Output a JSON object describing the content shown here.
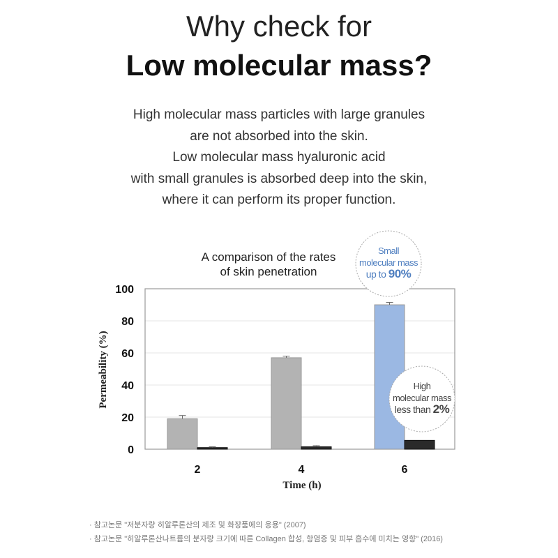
{
  "heading": {
    "line1": "Why check for",
    "line2": "Low molecular mass?"
  },
  "description": [
    "High molecular mass particles with large granules",
    "are not absorbed into the skin.",
    "Low molecular mass hyaluronic acid",
    "with small granules is absorbed deep into the skin,",
    "where it can perform its proper function."
  ],
  "chart_data": {
    "type": "bar",
    "title_lines": [
      "A comparison of the rates",
      "of skin penetration"
    ],
    "xlabel": "Time (h)",
    "ylabel": "Permeability (%)",
    "categories": [
      "2",
      "4",
      "6"
    ],
    "ylim": [
      0,
      100
    ],
    "yticks": [
      "0",
      "20",
      "40",
      "60",
      "80",
      "100"
    ],
    "grid": true,
    "series": [
      {
        "values": [
          19,
          57,
          90
        ],
        "errors": [
          2,
          1,
          1.5
        ],
        "colors": [
          "#b3b3b3",
          "#b3b3b3",
          "#9bb8e3"
        ]
      },
      {
        "values": [
          1,
          1.5,
          5.5
        ],
        "errors": [
          0.5,
          0.7,
          0
        ],
        "colors": [
          "#2a2a2a",
          "#2a2a2a",
          "#2a2a2a"
        ]
      }
    ],
    "annotations": [
      {
        "lines": [
          "Small",
          "molecular mass",
          "up to "
        ],
        "emph": "90%",
        "color": "#4f7fc0"
      },
      {
        "lines": [
          "High",
          "molecular mass",
          "less than "
        ],
        "emph": "2%",
        "color": "#444444"
      }
    ]
  },
  "footnotes": [
    "· 참고논문 \"저분자량 히알루론산의 제조 및 화장품에의 응용\" (2007)",
    "· 참고논문 \"히알루론산나트륨의 분자량 크기에 따른 Collagen 합성, 항염증 및 피부 흡수에 미치는 영향\" (2016)"
  ]
}
